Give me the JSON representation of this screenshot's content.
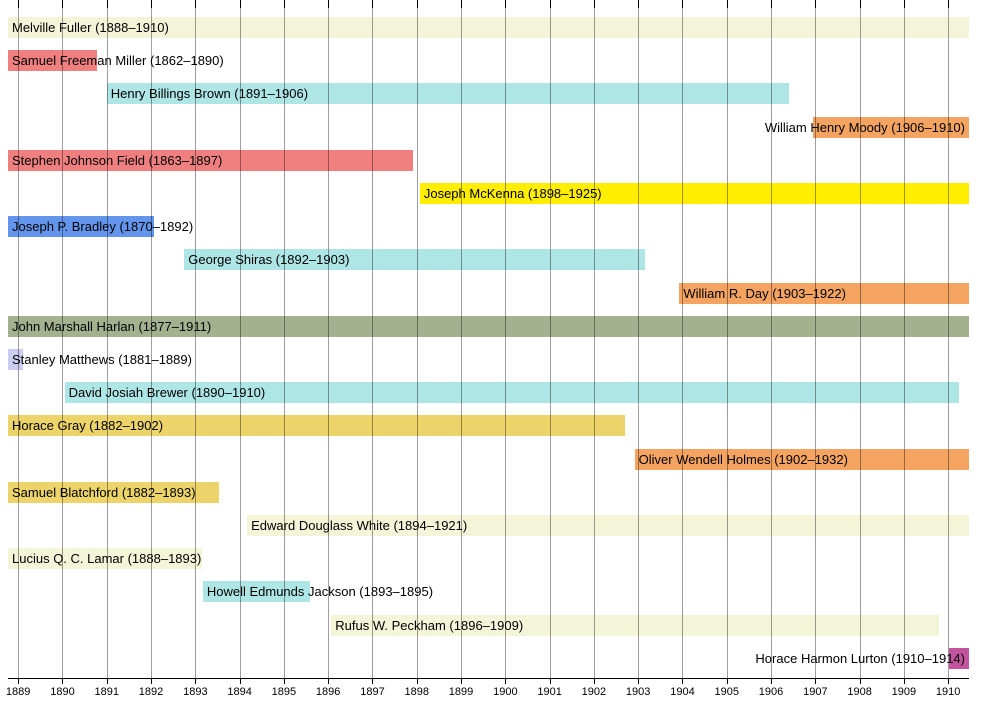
{
  "chart_data": {
    "type": "gantt",
    "orientation": "horizontal",
    "grid": true,
    "axis": {
      "domain_min": 1888.77,
      "domain_max": 1910.47,
      "tick_labels": [
        1889,
        1890,
        1891,
        1892,
        1893,
        1894,
        1895,
        1896,
        1897,
        1898,
        1899,
        1900,
        1901,
        1902,
        1903,
        1904,
        1905,
        1906,
        1907,
        1908,
        1909,
        1910
      ]
    },
    "justices": [
      {
        "name": "Melville Fuller",
        "years": "1888–1910",
        "label": "Melville Fuller (1888–1910)",
        "bar_start": 1888.5,
        "bar_end": 1910.5,
        "color": "#f4f4d8",
        "label_anchor": "left"
      },
      {
        "name": "Samuel Freeman Miller",
        "years": "1862–1890",
        "label": "Samuel Freeman Miller (1862–1890)",
        "bar_start": 1862.0,
        "bar_end": 1890.79,
        "color": "#f08080",
        "label_anchor": "left"
      },
      {
        "name": "Henry Billings Brown",
        "years": "1891–1906",
        "label": "Henry Billings Brown (1891–1906)",
        "bar_start": 1891.0,
        "bar_end": 1906.41,
        "color": "#aee6e6",
        "label_anchor": "left"
      },
      {
        "name": "William Henry Moody",
        "years": "1906–1910",
        "label": "William Henry Moody (1906–1910)",
        "bar_start": 1906.94,
        "bar_end": 1910.9,
        "color": "#f4a460",
        "label_anchor": "right"
      },
      {
        "name": "Stephen Johnson Field",
        "years": "1863–1897",
        "label": "Stephen Johnson Field (1863–1897)",
        "bar_start": 1863.0,
        "bar_end": 1897.92,
        "color": "#f08080",
        "label_anchor": "left"
      },
      {
        "name": "Joseph McKenna",
        "years": "1898–1925",
        "label": "Joseph McKenna (1898–1925)",
        "bar_start": 1898.07,
        "bar_end": 1925.0,
        "color": "#ffee00",
        "label_anchor": "left"
      },
      {
        "name": "Joseph P. Bradley",
        "years": "1870–1892",
        "label": "Joseph P. Bradley (1870–1892)",
        "bar_start": 1870.0,
        "bar_end": 1892.06,
        "color": "#6495ed",
        "label_anchor": "left"
      },
      {
        "name": "George Shiras",
        "years": "1892–1903",
        "label": "George Shiras (1892–1903)",
        "bar_start": 1892.75,
        "bar_end": 1903.15,
        "color": "#aee6e6",
        "label_anchor": "left"
      },
      {
        "name": "William R. Day",
        "years": "1903–1922",
        "label": "William R. Day (1903–1922)",
        "bar_start": 1903.93,
        "bar_end": 1922.0,
        "color": "#f4a460",
        "label_anchor": "left"
      },
      {
        "name": "John Marshall Harlan",
        "years": "1877–1911",
        "label": "John Marshall Harlan (1877–1911)",
        "bar_start": 1877.0,
        "bar_end": 1911.8,
        "color": "#a3b18f",
        "label_anchor": "left"
      },
      {
        "name": "Stanley Matthews",
        "years": "1881–1889",
        "label": "Stanley Matthews (1881–1889)",
        "bar_start": 1881.0,
        "bar_end": 1889.1,
        "color": "#ccccf0",
        "label_anchor": "left"
      },
      {
        "name": "David Josiah Brewer",
        "years": "1890–1910",
        "label": "David Josiah Brewer (1890–1910)",
        "bar_start": 1890.05,
        "bar_end": 1910.24,
        "color": "#aee6e6",
        "label_anchor": "left"
      },
      {
        "name": "Horace Gray",
        "years": "1882–1902",
        "label": "Horace Gray (1882–1902)",
        "bar_start": 1882.0,
        "bar_end": 1902.71,
        "color": "#ecd46a",
        "label_anchor": "left"
      },
      {
        "name": "Oliver Wendell Holmes",
        "years": "1902–1932",
        "label": "Oliver Wendell Holmes (1902–1932)",
        "bar_start": 1902.92,
        "bar_end": 1932.0,
        "color": "#f4a460",
        "label_anchor": "left"
      },
      {
        "name": "Samuel Blatchford",
        "years": "1882–1893",
        "label": "Samuel Blatchford (1882–1893)",
        "bar_start": 1882.0,
        "bar_end": 1893.53,
        "color": "#ecd46a",
        "label_anchor": "left"
      },
      {
        "name": "Edward Douglass White",
        "years": "1894–1921",
        "label": "Edward Douglass White (1894–1921)",
        "bar_start": 1894.17,
        "bar_end": 1921.0,
        "color": "#f4f4d8",
        "label_anchor": "left"
      },
      {
        "name": "Lucius Q. C. Lamar",
        "years": "1888–1893",
        "label": "Lucius Q. C. Lamar (1888–1893)",
        "bar_start": 1888.0,
        "bar_end": 1893.15,
        "color": "#f4f4d8",
        "label_anchor": "left"
      },
      {
        "name": "Howell Edmunds Jackson",
        "years": "1893–1895",
        "label": "Howell Edmunds Jackson (1893–1895)",
        "bar_start": 1893.17,
        "bar_end": 1895.6,
        "color": "#aee6e6",
        "label_anchor": "left"
      },
      {
        "name": "Rufus W. Peckham",
        "years": "1896–1909",
        "label": "Rufus W. Peckham (1896–1909)",
        "bar_start": 1896.07,
        "bar_end": 1909.8,
        "color": "#f4f4d8",
        "label_anchor": "left"
      },
      {
        "name": "Horace Harmon Lurton",
        "years": "1910–1914",
        "label": "Horace Harmon Lurton (1910–1914)",
        "bar_start": 1910.02,
        "bar_end": 1914.0,
        "color": "#c4539f",
        "label_anchor": "right"
      }
    ]
  }
}
